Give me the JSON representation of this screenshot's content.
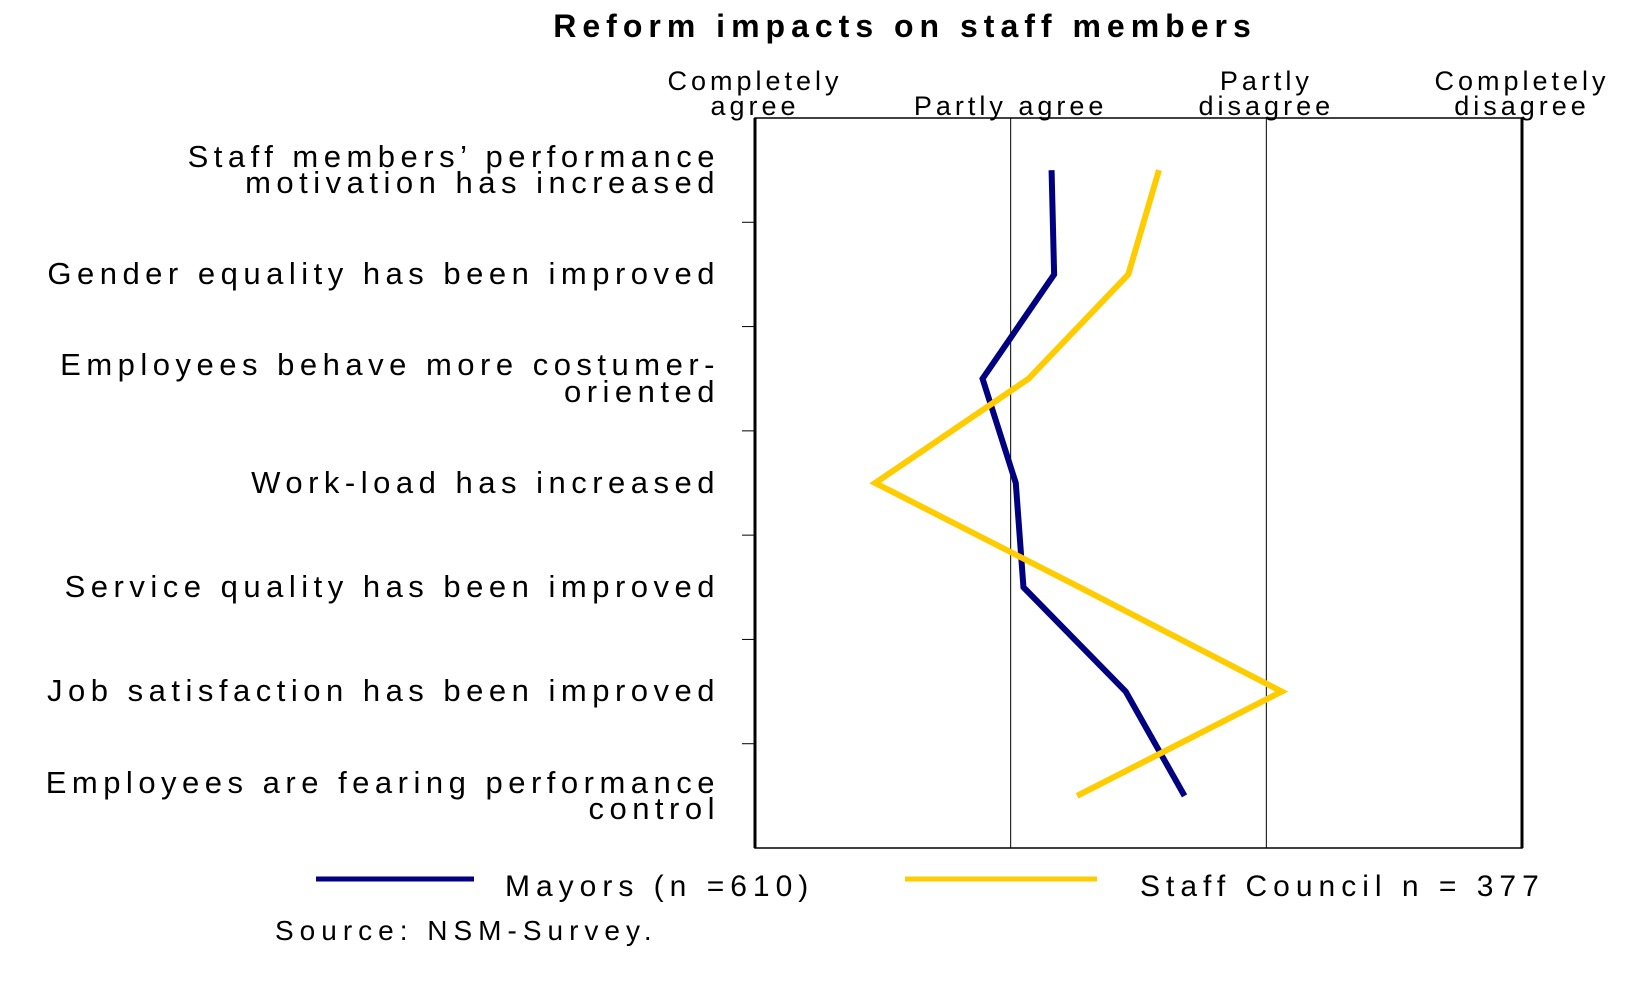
{
  "chart_data": {
    "type": "line",
    "orientation": "horizontal",
    "title": "Reform impacts on staff members",
    "categories": [
      "Staff members’ performance motivation has increased",
      "Gender equality has been improved",
      "Employees behave more costumer-oriented",
      "Work-load has increased",
      "Service quality has been improved",
      "Job satisfaction has been improved",
      "Employees are fearing performance control"
    ],
    "series": [
      {
        "name": "Mayors (n =610)",
        "color": "#000080",
        "values": [
          2.16,
          2.17,
          1.89,
          2.02,
          2.05,
          2.45,
          2.68
        ]
      },
      {
        "name": "Staff Council n = 377",
        "color": "#ffcc00",
        "values": [
          2.58,
          2.46,
          2.07,
          1.47,
          2.27,
          3.06,
          2.26
        ]
      }
    ],
    "xlim": [
      1,
      4
    ],
    "xticks": [
      {
        "value": 1,
        "label": "Completely agree"
      },
      {
        "value": 2,
        "label": "Partly agree"
      },
      {
        "value": 3,
        "label": "Partly disagree"
      },
      {
        "value": 4,
        "label": "Completely disagree"
      }
    ],
    "grid": true,
    "legend": "bottom",
    "source": "Source: NSM-Survey."
  }
}
